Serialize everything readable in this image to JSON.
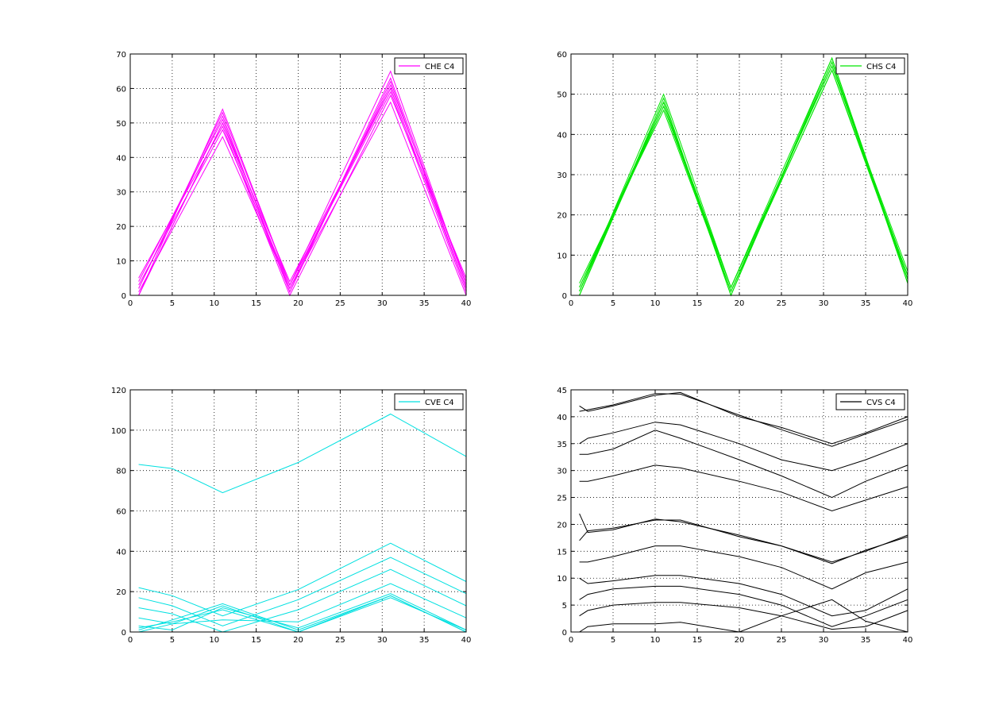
{
  "chart_data": [
    {
      "type": "line",
      "legend": "CHE C4",
      "legend_position": "top-right",
      "color": "#ff00ff",
      "grid": true,
      "xlim": [
        0,
        40
      ],
      "ylim": [
        0,
        70
      ],
      "xticks": [
        "0",
        "5",
        "10",
        "15",
        "20",
        "25",
        "30",
        "35",
        "40"
      ],
      "yticks": [
        "0",
        "10",
        "20",
        "30",
        "40",
        "50",
        "60",
        "70"
      ],
      "x": [
        1,
        11,
        19,
        31,
        40
      ],
      "series": [
        {
          "values": [
            0,
            54,
            3,
            65,
            3
          ]
        },
        {
          "values": [
            2,
            52,
            1,
            62,
            2
          ]
        },
        {
          "values": [
            4,
            51,
            2,
            61,
            4
          ]
        },
        {
          "values": [
            0,
            50,
            4,
            60,
            2
          ]
        },
        {
          "values": [
            5,
            49,
            0,
            58,
            5
          ]
        },
        {
          "values": [
            3,
            48,
            3,
            59,
            1
          ]
        },
        {
          "values": [
            1,
            46,
            2,
            56,
            0
          ]
        },
        {
          "values": [
            0,
            50,
            1,
            63,
            3
          ]
        },
        {
          "values": [
            2,
            53,
            3,
            60,
            2
          ]
        }
      ]
    },
    {
      "type": "line",
      "legend": "CHS C4",
      "legend_position": "top-right",
      "color": "#00e600",
      "grid": true,
      "xlim": [
        0,
        40
      ],
      "ylim": [
        0,
        60
      ],
      "xticks": [
        "0",
        "5",
        "10",
        "15",
        "20",
        "25",
        "30",
        "35",
        "40"
      ],
      "yticks": [
        "0",
        "10",
        "20",
        "30",
        "40",
        "50",
        "60"
      ],
      "x": [
        1,
        11,
        19,
        31,
        40
      ],
      "series": [
        {
          "values": [
            1,
            48,
            1,
            58,
            4
          ]
        },
        {
          "values": [
            2,
            47,
            2,
            57,
            5
          ]
        },
        {
          "values": [
            0,
            49,
            0,
            59,
            3
          ]
        },
        {
          "values": [
            3,
            46,
            1,
            56,
            4
          ]
        },
        {
          "values": [
            1,
            50,
            2,
            57,
            6
          ]
        },
        {
          "values": [
            2,
            48,
            0,
            58,
            3
          ]
        },
        {
          "values": [
            1,
            47,
            1,
            56,
            5
          ]
        },
        {
          "values": [
            0,
            48,
            2,
            59,
            4
          ]
        }
      ]
    },
    {
      "type": "line",
      "legend": "CVE C4",
      "legend_position": "top-right",
      "color": "#00e0e0",
      "grid": true,
      "xlim": [
        0,
        40
      ],
      "ylim": [
        0,
        120
      ],
      "xticks": [
        "0",
        "5",
        "10",
        "15",
        "20",
        "25",
        "30",
        "35",
        "40"
      ],
      "yticks": [
        "0",
        "20",
        "40",
        "60",
        "80",
        "100",
        "120"
      ],
      "x": [
        1,
        5,
        11,
        20,
        31,
        40
      ],
      "series": [
        {
          "values": [
            83,
            81,
            69,
            84,
            108,
            87
          ]
        },
        {
          "values": [
            22,
            18,
            8,
            21,
            44,
            25
          ]
        },
        {
          "values": [
            17,
            13,
            3,
            16,
            37,
            19
          ]
        },
        {
          "values": [
            12,
            9,
            0,
            11,
            31,
            13
          ]
        },
        {
          "values": [
            7,
            4,
            6,
            5,
            24,
            7
          ]
        },
        {
          "values": [
            3,
            1,
            12,
            2,
            19,
            1
          ]
        },
        {
          "values": [
            0,
            4,
            13,
            0,
            18,
            0
          ]
        },
        {
          "values": [
            1,
            6,
            14,
            1,
            18,
            0
          ]
        },
        {
          "values": [
            2,
            5,
            11,
            0,
            17,
            1
          ]
        }
      ]
    },
    {
      "type": "line",
      "legend": "CVS C4",
      "legend_position": "top-right",
      "color": "#000000",
      "grid": true,
      "xlim": [
        0,
        40
      ],
      "ylim": [
        0,
        45
      ],
      "xticks": [
        "0",
        "5",
        "10",
        "15",
        "20",
        "25",
        "30",
        "35",
        "40"
      ],
      "yticks": [
        "0",
        "5",
        "10",
        "15",
        "20",
        "25",
        "30",
        "35",
        "40",
        "45"
      ],
      "x": [
        1,
        2,
        5,
        10,
        13,
        20,
        25,
        31,
        35,
        40
      ],
      "series": [
        {
          "values": [
            42,
            41,
            42,
            44,
            44.5,
            40,
            38,
            35,
            37,
            40
          ]
        },
        {
          "values": [
            41,
            41.3,
            42.2,
            44.3,
            44.2,
            40.3,
            37.6,
            34.5,
            36.8,
            39.5
          ]
        },
        {
          "values": [
            35,
            36,
            37,
            39,
            38.5,
            35,
            32,
            30,
            32,
            35
          ]
        },
        {
          "values": [
            33,
            33,
            34,
            37.5,
            36,
            32,
            29,
            25,
            28,
            31
          ]
        },
        {
          "values": [
            28,
            28,
            29,
            31,
            30.5,
            28,
            26,
            22.5,
            24.5,
            27
          ]
        },
        {
          "values": [
            22,
            18.5,
            19,
            21,
            20.5,
            18,
            16,
            13,
            15,
            18
          ]
        },
        {
          "values": [
            17,
            18.8,
            19.3,
            20.8,
            20.8,
            17.7,
            16,
            12.7,
            15.2,
            17.7
          ]
        },
        {
          "values": [
            13,
            13,
            14,
            16,
            16,
            14,
            12,
            8,
            11,
            13
          ]
        },
        {
          "values": [
            10,
            9,
            9.5,
            10.5,
            10.5,
            9,
            7,
            3,
            4,
            8
          ]
        },
        {
          "values": [
            6,
            7,
            8,
            8.5,
            8.5,
            7,
            5,
            1,
            3,
            6
          ]
        },
        {
          "values": [
            3,
            4,
            5,
            5.5,
            5.5,
            4.5,
            3,
            0.5,
            1,
            4
          ]
        },
        {
          "values": [
            0,
            1,
            1.5,
            1.5,
            1.8,
            0,
            3,
            6,
            2,
            0
          ]
        }
      ]
    }
  ]
}
